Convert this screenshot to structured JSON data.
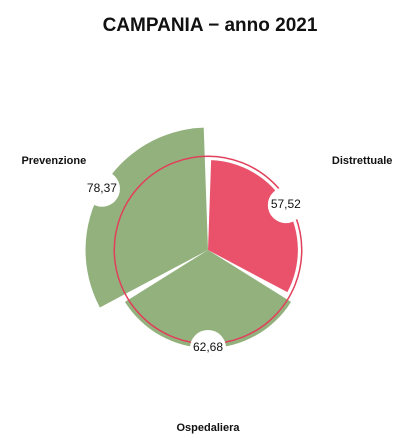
{
  "chart_data": {
    "type": "polar_area",
    "title": "CAMPANIA − anno 2021",
    "categories": [
      "Distrettuale",
      "Ospedaliera",
      "Prevenzione"
    ],
    "values": [
      57.52,
      62.68,
      78.37
    ],
    "value_labels": [
      "57,52",
      "62,68",
      "78,37"
    ],
    "colors": [
      "#e8435e",
      "#8aaa72",
      "#8aaa72"
    ],
    "rlim": [
      0,
      80
    ],
    "reference_line": {
      "value": 60,
      "color": "#e0405a"
    }
  }
}
